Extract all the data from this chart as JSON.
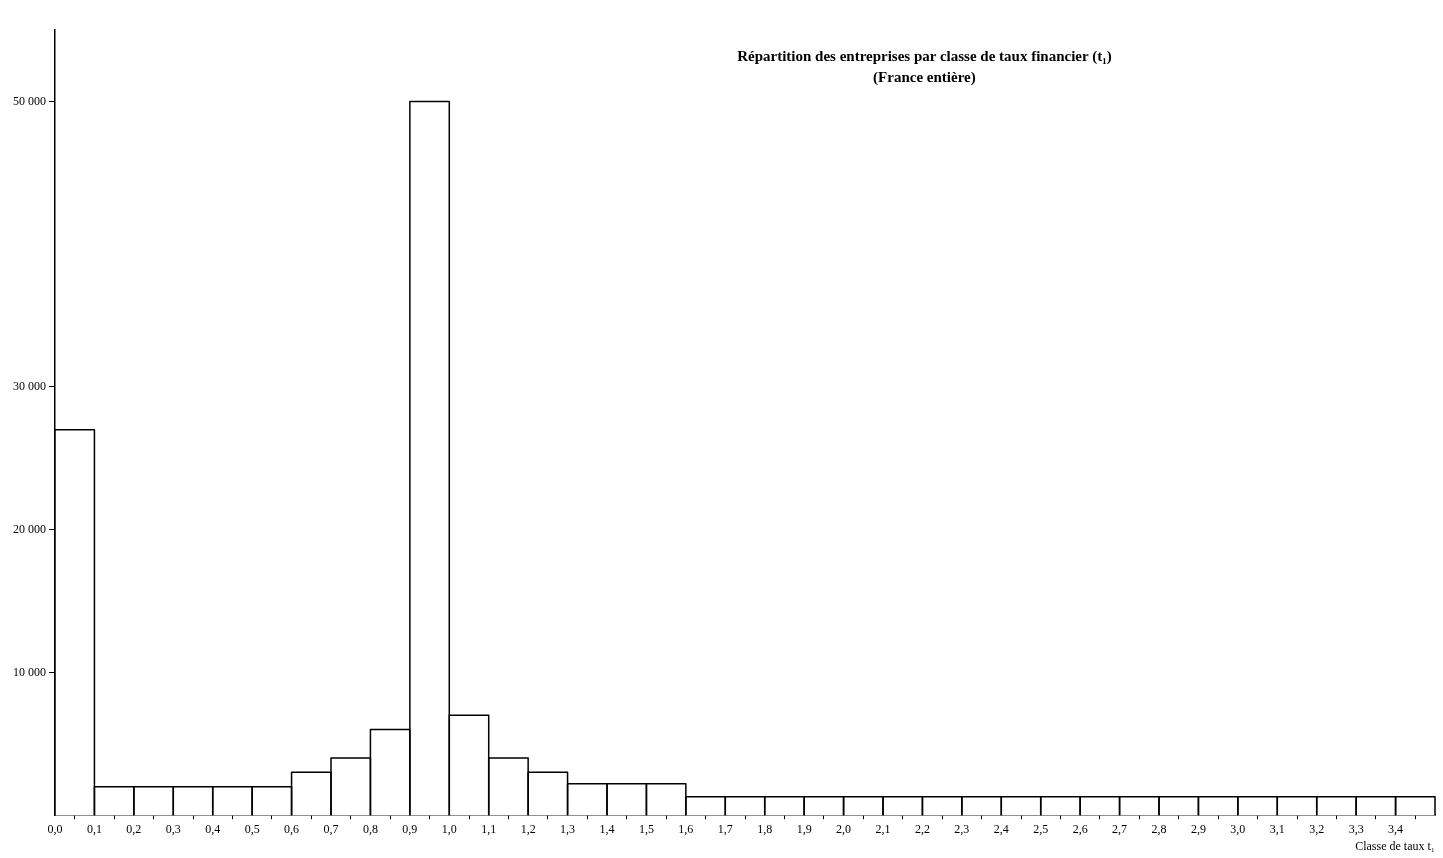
{
  "chart_data": {
    "type": "histogram",
    "title": "Répartition des entreprises par classe de taux financier (t₁)",
    "subtitle": "(France entière)",
    "xlabel": "Classe de taux t₁",
    "bins": [
      0,
      0.1,
      0.2,
      0.3,
      0.4,
      0.5,
      0.6,
      0.7,
      0.8,
      0.9,
      1.0,
      1.1,
      1.2,
      1.3,
      1.4,
      1.5,
      1.6,
      1.7,
      1.8,
      1.9,
      2.0,
      2.1,
      2.2,
      2.3,
      2.4,
      2.5,
      2.6,
      2.7,
      2.8,
      2.9,
      3.0,
      3.1,
      3.2,
      3.3,
      3.4,
      3.5
    ],
    "values": [
      27000,
      2000,
      2000,
      2000,
      2000,
      2000,
      3000,
      4000,
      6000,
      50000,
      7000,
      4000,
      3000,
      2200,
      2200,
      2200,
      1300,
      1300,
      1300,
      1300,
      1300,
      1300,
      1300,
      1300,
      1300,
      1300,
      1300,
      1300,
      1300,
      1300,
      1300,
      1300,
      1300,
      1300,
      1300
    ],
    "color": "#ffffff",
    "xlim": [
      0,
      3.5
    ],
    "xticks": [
      {
        "value": 0,
        "label": "0,0"
      },
      {
        "value": 0.1,
        "label": "0,1"
      },
      {
        "value": 0.2,
        "label": "0,2"
      },
      {
        "value": 0.3,
        "label": "0,3"
      },
      {
        "value": 0.4,
        "label": "0,4"
      },
      {
        "value": 0.5,
        "label": "0,5"
      },
      {
        "value": 0.6,
        "label": "0,6"
      },
      {
        "value": 0.7,
        "label": "0,7"
      },
      {
        "value": 0.8,
        "label": "0,8"
      },
      {
        "value": 0.9,
        "label": "0,9"
      },
      {
        "value": 1.0,
        "label": "1,0"
      },
      {
        "value": 1.1,
        "label": "1,1"
      },
      {
        "value": 1.2,
        "label": "1,2"
      },
      {
        "value": 1.3,
        "label": "1,3"
      },
      {
        "value": 1.4,
        "label": "1,4"
      },
      {
        "value": 1.5,
        "label": "1,5"
      },
      {
        "value": 1.6,
        "label": "1,6"
      },
      {
        "value": 1.7,
        "label": "1,7"
      },
      {
        "value": 1.8,
        "label": "1,8"
      },
      {
        "value": 1.9,
        "label": "1,9"
      },
      {
        "value": 2.0,
        "label": "2,0"
      },
      {
        "value": 2.1,
        "label": "2,1"
      },
      {
        "value": 2.2,
        "label": "2,2"
      },
      {
        "value": 2.3,
        "label": "2,3"
      },
      {
        "value": 2.4,
        "label": "2,4"
      },
      {
        "value": 2.5,
        "label": "2,5"
      },
      {
        "value": 2.6,
        "label": "2,6"
      },
      {
        "value": 2.7,
        "label": "2,7"
      },
      {
        "value": 2.8,
        "label": "2,8"
      },
      {
        "value": 2.9,
        "label": "2,9"
      },
      {
        "value": 3.0,
        "label": "3,0"
      },
      {
        "value": 3.1,
        "label": "3,1"
      },
      {
        "value": 3.2,
        "label": "3,2"
      },
      {
        "value": 3.3,
        "label": "3,3"
      },
      {
        "value": 3.4,
        "label": "3,4"
      }
    ],
    "ylim": [
      0,
      55000
    ],
    "yticks": [
      {
        "value": 10000,
        "label": "10 000"
      },
      {
        "value": 20000,
        "label": "20 000"
      },
      {
        "value": 30000,
        "label": "30 000"
      },
      {
        "value": 50000,
        "label": "50 000"
      }
    ],
    "grid": false,
    "legend": false
  }
}
